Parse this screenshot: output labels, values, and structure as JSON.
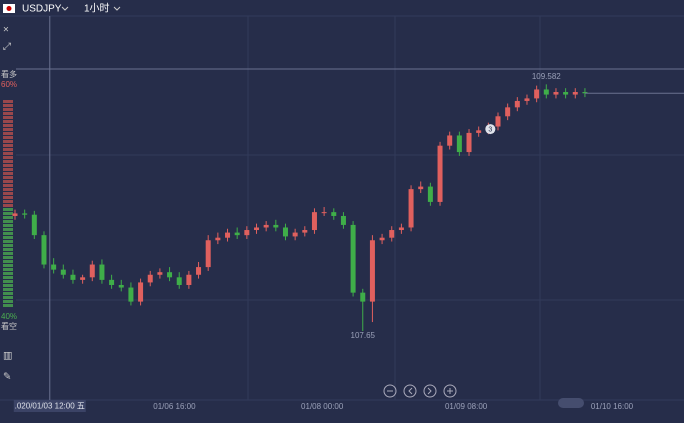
{
  "header": {
    "symbol": "USDJPY",
    "interval": "1小时"
  },
  "sentiment": {
    "bull_label": "看多",
    "bull_pct": "60%",
    "bear_label": "看空",
    "bear_pct": "40%",
    "bull_color": "#c0504d",
    "bear_color": "#4caf50"
  },
  "chart_data": {
    "type": "candlestick",
    "open": [
      108.55,
      108.57,
      108.56,
      108.4,
      108.17,
      108.13,
      108.09,
      108.05,
      108.07,
      108.17,
      108.05,
      108.01,
      107.99,
      107.88,
      108.03,
      108.09,
      108.11,
      108.07,
      108.01,
      108.09,
      108.15,
      108.36,
      108.38,
      108.42,
      108.4,
      108.44,
      108.46,
      108.48,
      108.46,
      108.39,
      108.42,
      108.44,
      108.58,
      108.58,
      108.55,
      108.48,
      107.95,
      107.88,
      108.36,
      108.38,
      108.44,
      108.46,
      108.76,
      108.78,
      108.66,
      109.1,
      109.18,
      109.05,
      109.2,
      109.22,
      109.25,
      109.33,
      109.4,
      109.45,
      109.47,
      109.54,
      109.5,
      109.52,
      109.5,
      109.52
    ],
    "high": [
      108.6,
      108.6,
      108.59,
      108.43,
      108.22,
      108.17,
      108.13,
      108.09,
      108.2,
      108.21,
      108.09,
      108.05,
      108.03,
      108.06,
      108.12,
      108.14,
      108.15,
      108.11,
      108.12,
      108.19,
      108.4,
      108.42,
      108.45,
      108.46,
      108.47,
      108.49,
      108.51,
      108.52,
      108.49,
      108.45,
      108.47,
      108.61,
      108.62,
      108.61,
      108.58,
      108.51,
      107.98,
      108.4,
      108.41,
      108.47,
      108.49,
      108.79,
      108.82,
      108.81,
      109.13,
      109.21,
      109.21,
      109.23,
      109.25,
      109.28,
      109.36,
      109.43,
      109.48,
      109.5,
      109.57,
      109.58,
      109.55,
      109.55,
      109.55,
      109.55
    ],
    "low": [
      108.52,
      108.53,
      108.37,
      108.14,
      108.1,
      108.06,
      108.02,
      108.02,
      108.04,
      108.02,
      107.98,
      107.96,
      107.85,
      107.85,
      108.0,
      108.06,
      108.04,
      107.98,
      107.98,
      108.06,
      108.12,
      108.33,
      108.35,
      108.37,
      108.37,
      108.41,
      108.43,
      108.43,
      108.36,
      108.36,
      108.39,
      108.41,
      108.55,
      108.52,
      108.45,
      107.92,
      107.65,
      107.72,
      108.33,
      108.35,
      108.41,
      108.43,
      108.73,
      108.63,
      108.63,
      109.07,
      109.02,
      109.02,
      109.17,
      109.19,
      109.22,
      109.3,
      109.37,
      109.42,
      109.44,
      109.47,
      109.47,
      109.47,
      109.47,
      109.48
    ],
    "close": [
      108.57,
      108.56,
      108.4,
      108.17,
      108.13,
      108.09,
      108.05,
      108.07,
      108.17,
      108.05,
      108.01,
      107.99,
      107.88,
      108.03,
      108.09,
      108.11,
      108.07,
      108.01,
      108.09,
      108.15,
      108.36,
      108.38,
      108.42,
      108.4,
      108.44,
      108.46,
      108.48,
      108.46,
      108.39,
      108.42,
      108.44,
      108.58,
      108.58,
      108.55,
      108.48,
      107.95,
      107.88,
      108.36,
      108.38,
      108.44,
      108.46,
      108.76,
      108.78,
      108.66,
      109.1,
      109.18,
      109.05,
      109.2,
      109.22,
      109.25,
      109.33,
      109.4,
      109.45,
      109.47,
      109.54,
      109.5,
      109.52,
      109.5,
      109.52,
      109.51
    ],
    "up_color": "#e0605e",
    "down_color": "#3fae49",
    "ylim": [
      107.11,
      110.24
    ],
    "xticks": [
      {
        "value": 16.5,
        "label": "01/06 16:00"
      },
      {
        "value": 31.8,
        "label": "01/08 00:00"
      },
      {
        "value": 46.7,
        "label": "01/09 08:00"
      },
      {
        "value": 61.8,
        "label": "01/10 16:00"
      }
    ],
    "annotations": [
      {
        "index": 55,
        "value": 109.582,
        "label": "109.582"
      },
      {
        "index": 36,
        "value": 107.65,
        "label": "107.65"
      }
    ],
    "cursor": {
      "index": 3.6,
      "value": 109.7,
      "label": ".020/01/03 12:00 五"
    },
    "marker": {
      "index": 49,
      "value": 109.23,
      "label": "3"
    }
  }
}
